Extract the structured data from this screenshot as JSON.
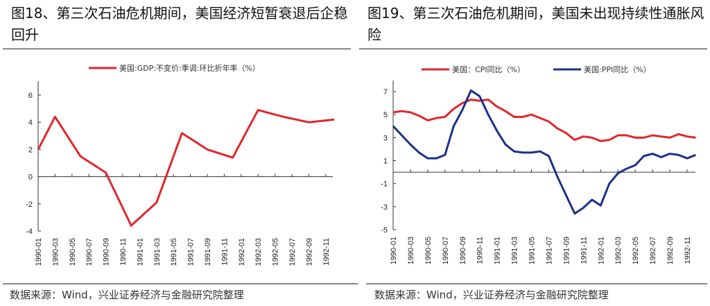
{
  "footer": {
    "source": "数据来源：Wind，兴业证券经济与金融研究院整理"
  },
  "chart_data": [
    {
      "type": "line",
      "title": "图18、第三次石油危机期间，美国经济短暂衰退后企稳回升",
      "x_tick_labels": [
        "1990-01",
        "1990-03",
        "1990-05",
        "1990-07",
        "1990-09",
        "1990-11",
        "1991-01",
        "1991-03",
        "1991-05",
        "1991-07",
        "1991-09",
        "1991-11",
        "1992-01",
        "1992-03",
        "1992-05",
        "1992-07",
        "1992-09",
        "1992-11"
      ],
      "ylim": [
        -4,
        7
      ],
      "yticks": [
        -4,
        -2,
        0,
        2,
        4,
        6
      ],
      "legend_position": "top",
      "grid": false,
      "series": [
        {
          "name": "美国:GDP:不变价:季调:环比折年率（%）",
          "color": "#e0262b",
          "x": [
            "1990-01",
            "1990-03",
            "1990-06",
            "1990-09",
            "1990-12",
            "1991-03",
            "1991-06",
            "1991-09",
            "1991-12",
            "1992-03",
            "1992-06",
            "1992-09",
            "1992-12"
          ],
          "values": [
            2.0,
            4.4,
            1.5,
            0.3,
            -3.6,
            -1.9,
            3.2,
            2.0,
            1.4,
            4.9,
            4.4,
            4.0,
            4.2
          ]
        }
      ]
    },
    {
      "type": "line",
      "title": "图19、第三次石油危机期间，美国未出现持续性通胀风险",
      "x_tick_labels": [
        "1990-01",
        "1990-03",
        "1990-05",
        "1990-07",
        "1990-09",
        "1990-11",
        "1991-01",
        "1991-03",
        "1991-05",
        "1991-07",
        "1991-09",
        "1991-11",
        "1992-01",
        "1992-03",
        "1992-05",
        "1992-07",
        "1992-09",
        "1992-11"
      ],
      "x_start": "1990-01",
      "x_end": "1992-12",
      "x_frequency": "monthly",
      "ylim": [
        -5,
        8
      ],
      "yticks": [
        -5,
        -3,
        -1,
        1,
        3,
        5,
        7
      ],
      "legend_position": "top",
      "grid": false,
      "series": [
        {
          "name": "美国：CPI同比（%）",
          "color": "#e0262b",
          "values": [
            5.2,
            5.3,
            5.2,
            4.9,
            4.5,
            4.7,
            4.8,
            5.5,
            6.0,
            6.3,
            6.2,
            6.3,
            5.7,
            5.3,
            4.8,
            4.8,
            5.0,
            4.7,
            4.4,
            3.8,
            3.4,
            2.8,
            3.1,
            3.0,
            2.7,
            2.8,
            3.2,
            3.2,
            3.0,
            3.0,
            3.2,
            3.1,
            3.0,
            3.3,
            3.1,
            3.0
          ]
        },
        {
          "name": "美国:PPI同比（%）",
          "color": "#1a2f8a",
          "values": [
            4.0,
            3.2,
            2.4,
            1.7,
            1.2,
            1.2,
            1.5,
            4.0,
            5.4,
            7.1,
            6.6,
            5.0,
            3.6,
            2.4,
            1.8,
            1.7,
            1.7,
            1.8,
            1.4,
            -0.4,
            -2.0,
            -3.6,
            -3.1,
            -2.4,
            -2.9,
            -1.0,
            -0.1,
            0.3,
            0.6,
            1.4,
            1.6,
            1.3,
            1.6,
            1.5,
            1.2,
            1.5
          ]
        }
      ]
    }
  ]
}
